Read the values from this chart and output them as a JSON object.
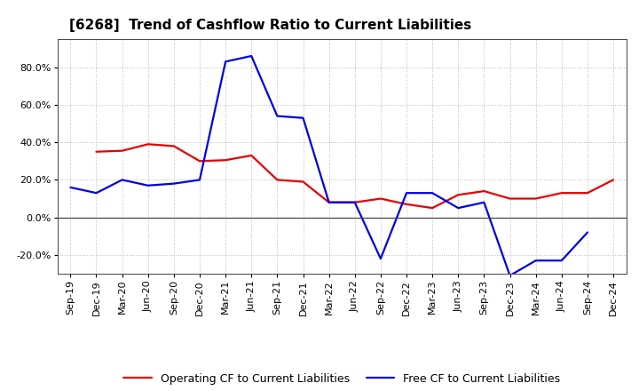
{
  "title": "[6268]  Trend of Cashflow Ratio to Current Liabilities",
  "x_labels": [
    "Sep-19",
    "Dec-19",
    "Mar-20",
    "Jun-20",
    "Sep-20",
    "Dec-20",
    "Mar-21",
    "Jun-21",
    "Sep-21",
    "Dec-21",
    "Mar-22",
    "Jun-22",
    "Sep-22",
    "Dec-22",
    "Mar-23",
    "Jun-23",
    "Sep-23",
    "Dec-23",
    "Mar-24",
    "Jun-24",
    "Sep-24",
    "Dec-24"
  ],
  "operating_cf": [
    null,
    35.0,
    35.5,
    39.0,
    38.0,
    30.0,
    30.5,
    33.0,
    20.0,
    19.0,
    8.0,
    8.0,
    10.0,
    7.0,
    5.0,
    12.0,
    14.0,
    10.0,
    10.0,
    13.0,
    13.0,
    20.0
  ],
  "free_cf": [
    16.0,
    13.0,
    20.0,
    17.0,
    18.0,
    20.0,
    83.0,
    86.0,
    54.0,
    53.0,
    8.0,
    8.0,
    -22.0,
    13.0,
    13.0,
    5.0,
    8.0,
    -31.0,
    -23.0,
    -23.0,
    -8.0,
    null
  ],
  "ylim": [
    -30,
    95
  ],
  "y_ticks": [
    -20.0,
    0.0,
    20.0,
    40.0,
    60.0,
    80.0
  ],
  "operating_color": "#e80000",
  "free_color": "#0000e8",
  "background_color": "#ffffff",
  "grid_color": "#999999",
  "legend_operating": "Operating CF to Current Liabilities",
  "legend_free": "Free CF to Current Liabilities",
  "title_fontsize": 11,
  "axis_fontsize": 8,
  "legend_fontsize": 9,
  "line_width": 1.6
}
